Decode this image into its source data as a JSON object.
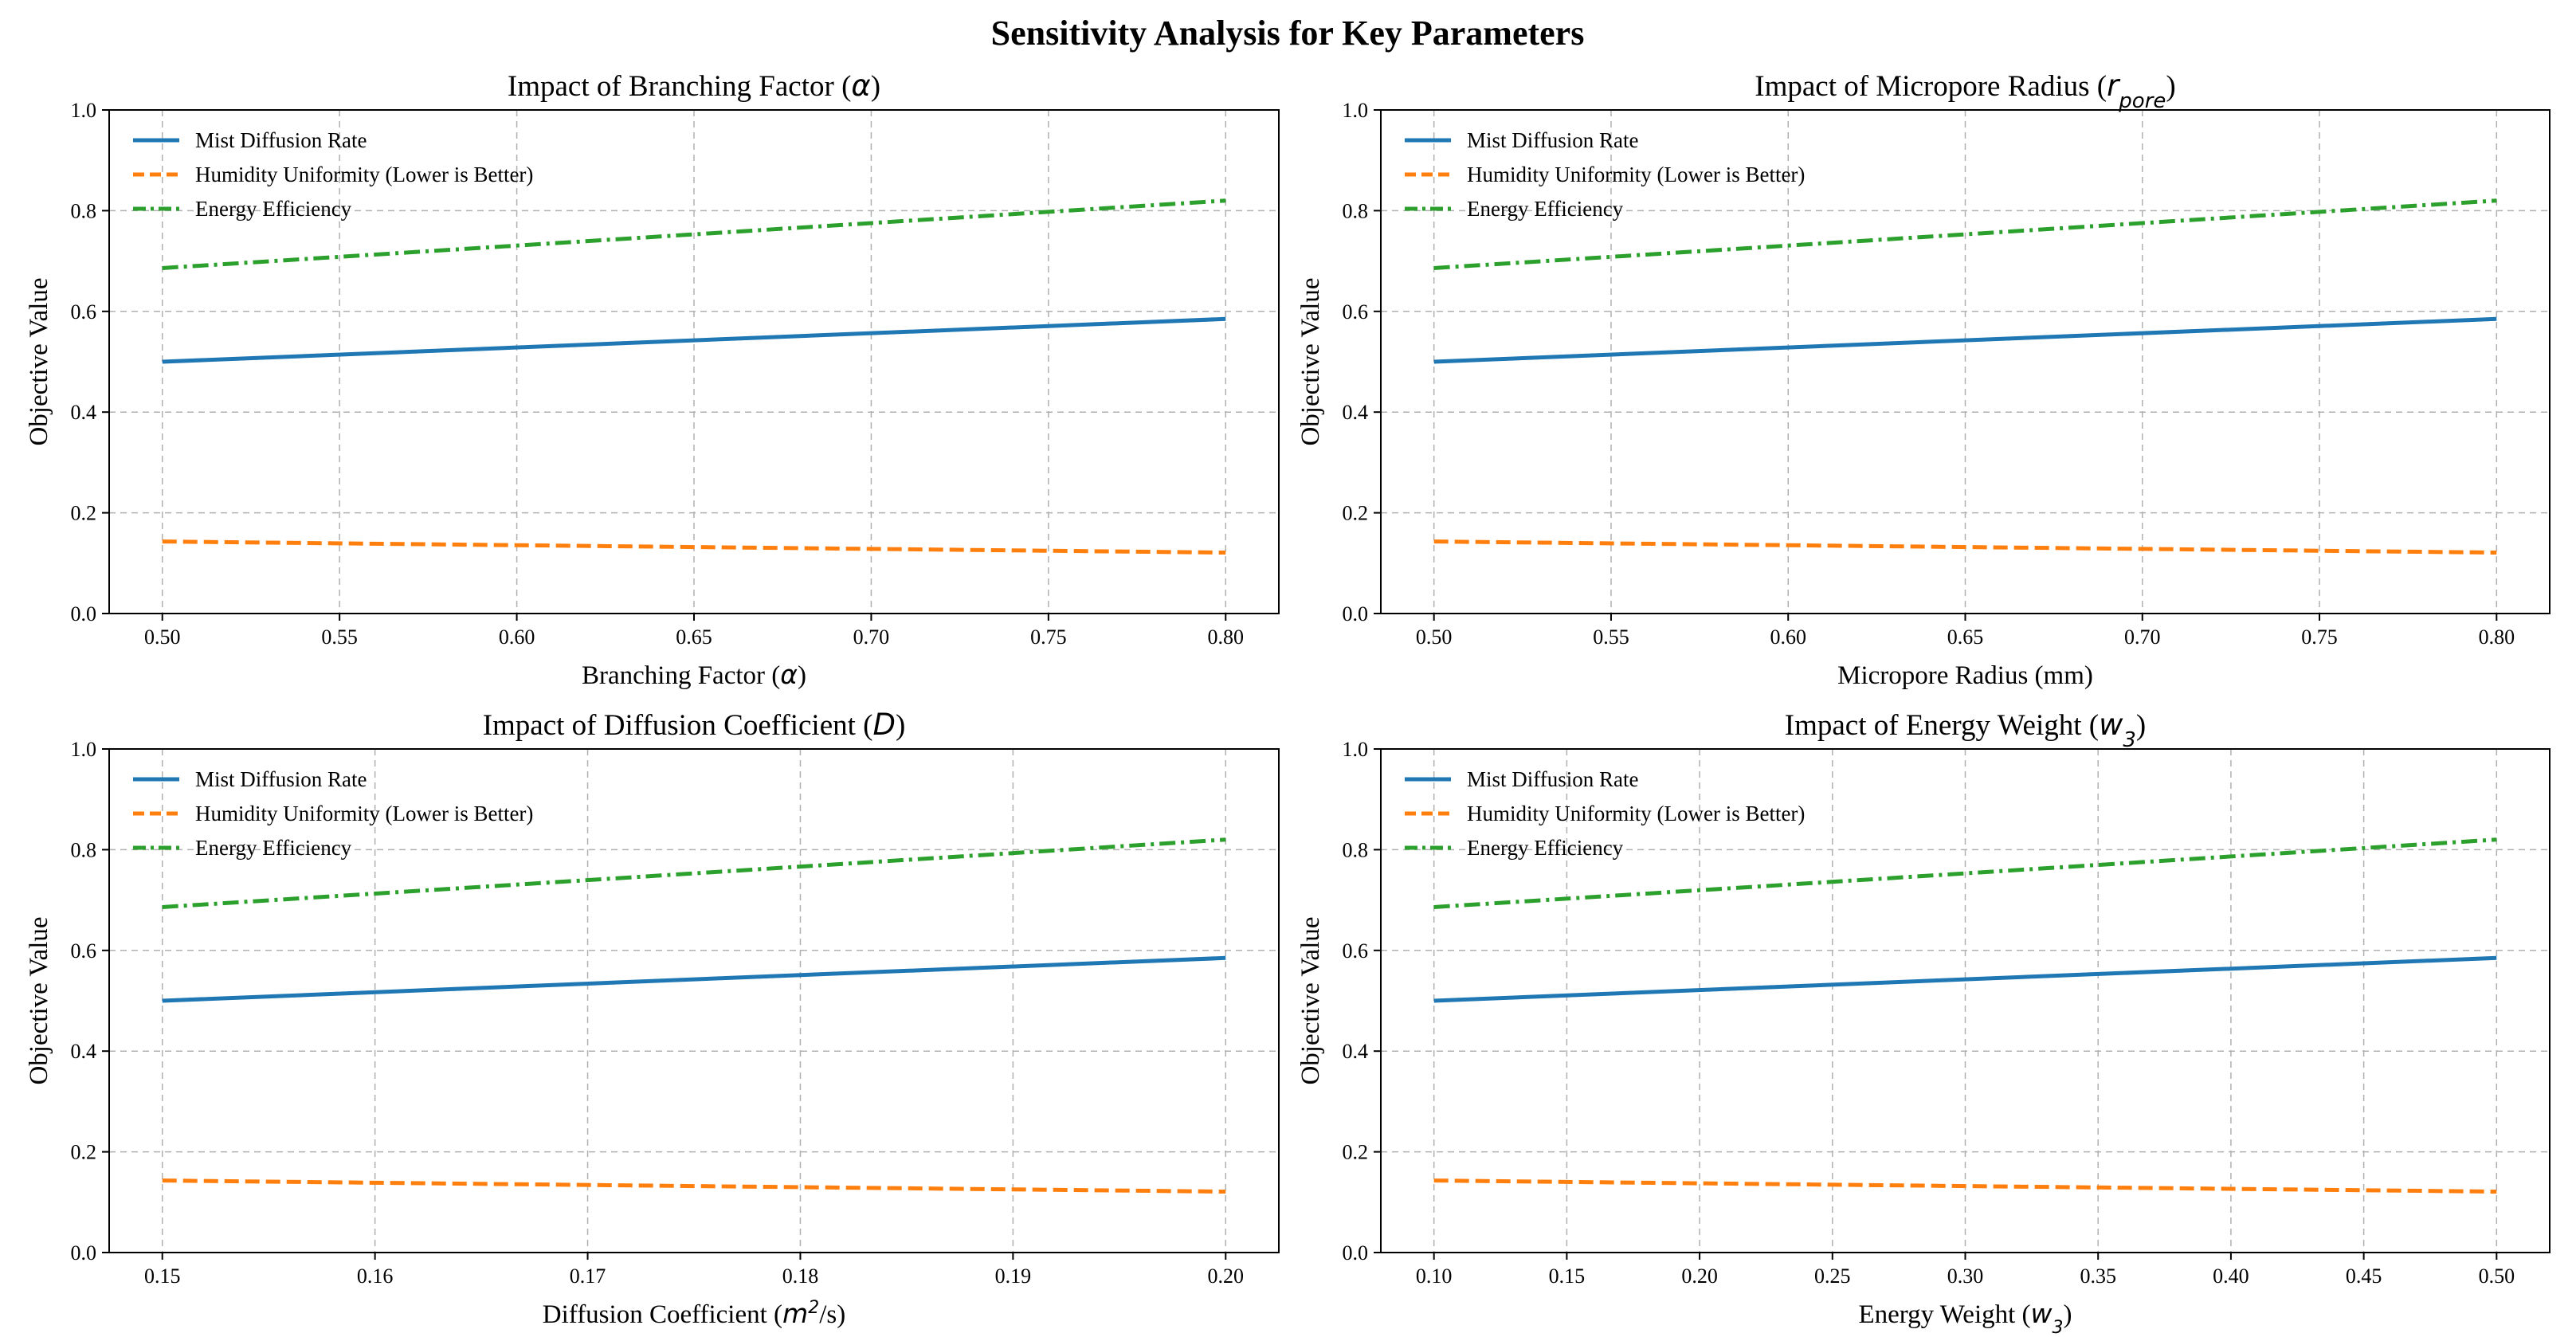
{
  "figure_title": "Sensitivity Analysis for Key Parameters",
  "colors": {
    "mist": "#1f77b4",
    "humidity": "#ff7f0e",
    "energy": "#2ca02c",
    "grid": "#b0b0b0",
    "axes": "#000000"
  },
  "chart_data": [
    {
      "type": "line",
      "title_prefix": "Impact of Branching Factor (",
      "title_math": "α",
      "title_sub": "",
      "title_suffix": ")",
      "xlabel_prefix": "Branching Factor (",
      "xlabel_math": "α",
      "xlabel_sup": "",
      "xlabel_suffix": ")",
      "ylabel": "Objective Value",
      "xlim": [
        0.485,
        0.815
      ],
      "ylim": [
        0.0,
        1.0
      ],
      "xticks": [
        0.5,
        0.55,
        0.6,
        0.65,
        0.7,
        0.75,
        0.8
      ],
      "xtick_labels": [
        "0.50",
        "0.55",
        "0.60",
        "0.65",
        "0.70",
        "0.75",
        "0.80"
      ],
      "yticks": [
        0.0,
        0.2,
        0.4,
        0.6,
        0.8,
        1.0
      ],
      "ytick_labels": [
        "0.0",
        "0.2",
        "0.4",
        "0.6",
        "0.8",
        "1.0"
      ],
      "grid": true,
      "legend_position": "upper-left",
      "x": [
        0.5,
        0.8
      ],
      "series": [
        {
          "name": "Mist Diffusion Rate",
          "style": "solid",
          "values": [
            0.5,
            0.585
          ]
        },
        {
          "name": "Humidity Uniformity (Lower is Better)",
          "style": "dashed",
          "values": [
            0.143,
            0.121
          ]
        },
        {
          "name": "Energy Efficiency",
          "style": "dashdot",
          "values": [
            0.686,
            0.82
          ]
        }
      ]
    },
    {
      "type": "line",
      "title_prefix": "Impact of Micropore Radius (",
      "title_math": "r",
      "title_sub": "pore",
      "title_suffix": ")",
      "xlabel_prefix": "Micropore Radius (mm)",
      "xlabel_math": "",
      "xlabel_sup": "",
      "xlabel_suffix": "",
      "ylabel": "Objective Value",
      "xlim": [
        0.485,
        0.815
      ],
      "ylim": [
        0.0,
        1.0
      ],
      "xticks": [
        0.5,
        0.55,
        0.6,
        0.65,
        0.7,
        0.75,
        0.8
      ],
      "xtick_labels": [
        "0.50",
        "0.55",
        "0.60",
        "0.65",
        "0.70",
        "0.75",
        "0.80"
      ],
      "yticks": [
        0.0,
        0.2,
        0.4,
        0.6,
        0.8,
        1.0
      ],
      "ytick_labels": [
        "0.0",
        "0.2",
        "0.4",
        "0.6",
        "0.8",
        "1.0"
      ],
      "grid": true,
      "legend_position": "upper-left",
      "x": [
        0.5,
        0.8
      ],
      "series": [
        {
          "name": "Mist Diffusion Rate",
          "style": "solid",
          "values": [
            0.5,
            0.585
          ]
        },
        {
          "name": "Humidity Uniformity (Lower is Better)",
          "style": "dashed",
          "values": [
            0.143,
            0.121
          ]
        },
        {
          "name": "Energy Efficiency",
          "style": "dashdot",
          "values": [
            0.686,
            0.82
          ]
        }
      ]
    },
    {
      "type": "line",
      "title_prefix": "Impact of Diffusion Coefficient (",
      "title_math": "D",
      "title_sub": "",
      "title_suffix": ")",
      "xlabel_prefix": "Diffusion Coefficient (",
      "xlabel_math": "m",
      "xlabel_sup": "2",
      "xlabel_suffix": "/s)",
      "ylabel": "Objective Value",
      "xlim": [
        0.1475,
        0.2025
      ],
      "ylim": [
        0.0,
        1.0
      ],
      "xticks": [
        0.15,
        0.16,
        0.17,
        0.18,
        0.19,
        0.2
      ],
      "xtick_labels": [
        "0.15",
        "0.16",
        "0.17",
        "0.18",
        "0.19",
        "0.20"
      ],
      "yticks": [
        0.0,
        0.2,
        0.4,
        0.6,
        0.8,
        1.0
      ],
      "ytick_labels": [
        "0.0",
        "0.2",
        "0.4",
        "0.6",
        "0.8",
        "1.0"
      ],
      "grid": true,
      "legend_position": "upper-left",
      "x": [
        0.15,
        0.2
      ],
      "series": [
        {
          "name": "Mist Diffusion Rate",
          "style": "solid",
          "values": [
            0.5,
            0.585
          ]
        },
        {
          "name": "Humidity Uniformity (Lower is Better)",
          "style": "dashed",
          "values": [
            0.143,
            0.121
          ]
        },
        {
          "name": "Energy Efficiency",
          "style": "dashdot",
          "values": [
            0.686,
            0.82
          ]
        }
      ]
    },
    {
      "type": "line",
      "title_prefix": "Impact of Energy Weight (",
      "title_math": "w",
      "title_sub": "3",
      "title_suffix": ")",
      "xlabel_prefix": "Energy Weight (",
      "xlabel_math": "w",
      "xlabel_sub": "3",
      "xlabel_sup": "",
      "xlabel_suffix": ")",
      "ylabel": "Objective Value",
      "xlim": [
        0.08,
        0.52
      ],
      "ylim": [
        0.0,
        1.0
      ],
      "xticks": [
        0.1,
        0.15,
        0.2,
        0.25,
        0.3,
        0.35,
        0.4,
        0.45,
        0.5
      ],
      "xtick_labels": [
        "0.10",
        "0.15",
        "0.20",
        "0.25",
        "0.30",
        "0.35",
        "0.40",
        "0.45",
        "0.50"
      ],
      "yticks": [
        0.0,
        0.2,
        0.4,
        0.6,
        0.8,
        1.0
      ],
      "ytick_labels": [
        "0.0",
        "0.2",
        "0.4",
        "0.6",
        "0.8",
        "1.0"
      ],
      "grid": true,
      "legend_position": "upper-left",
      "x": [
        0.1,
        0.5
      ],
      "series": [
        {
          "name": "Mist Diffusion Rate",
          "style": "solid",
          "values": [
            0.5,
            0.585
          ]
        },
        {
          "name": "Humidity Uniformity (Lower is Better)",
          "style": "dashed",
          "values": [
            0.143,
            0.121
          ]
        },
        {
          "name": "Energy Efficiency",
          "style": "dashdot",
          "values": [
            0.686,
            0.82
          ]
        }
      ]
    }
  ]
}
